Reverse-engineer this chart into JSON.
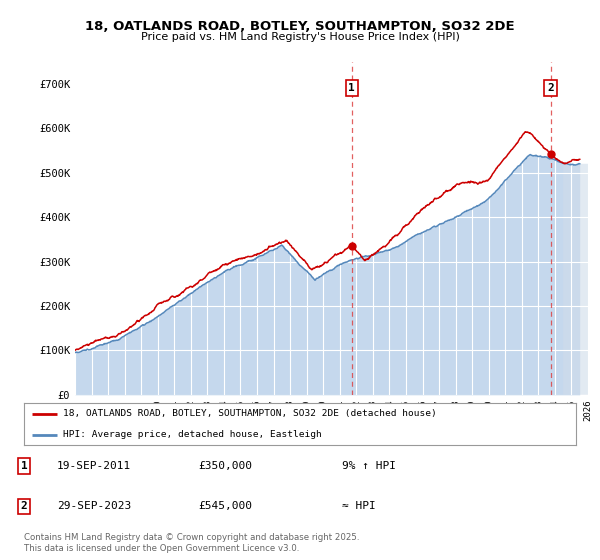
{
  "title1": "18, OATLANDS ROAD, BOTLEY, SOUTHAMPTON, SO32 2DE",
  "title2": "Price paid vs. HM Land Registry's House Price Index (HPI)",
  "plot_bg": "#e8f0f8",
  "hatch_area_color": "#d0dcea",
  "red_color": "#cc0000",
  "blue_color": "#5588bb",
  "blue_fill_color": "#c5d8ed",
  "marker1_x": 2011.72,
  "marker2_x": 2023.74,
  "marker1_price": 350000,
  "marker2_price": 545000,
  "marker1_label": "19-SEP-2011",
  "marker2_label": "29-SEP-2023",
  "marker1_hpi": "9% ↑ HPI",
  "marker2_hpi": "≈ HPI",
  "legend_line1": "18, OATLANDS ROAD, BOTLEY, SOUTHAMPTON, SO32 2DE (detached house)",
  "legend_line2": "HPI: Average price, detached house, Eastleigh",
  "footnote": "Contains HM Land Registry data © Crown copyright and database right 2025.\nThis data is licensed under the Open Government Licence v3.0.",
  "xmin": 1995,
  "xmax": 2026,
  "ymin": 0,
  "ymax": 750000,
  "yticks": [
    0,
    100000,
    200000,
    300000,
    400000,
    500000,
    600000,
    700000
  ],
  "ytick_labels": [
    "£0",
    "£100K",
    "£200K",
    "£300K",
    "£400K",
    "£500K",
    "£600K",
    "£700K"
  ],
  "hatch_start": 2024.5,
  "grid_color": "#ffffff",
  "dashed_line_color": "#dd4444"
}
